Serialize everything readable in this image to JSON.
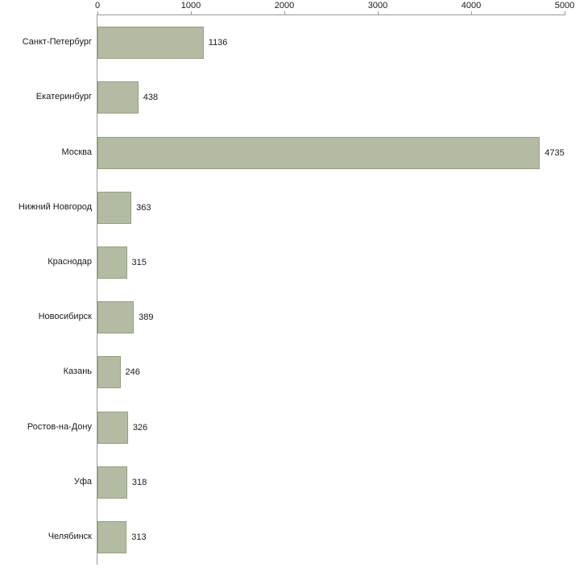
{
  "chart_data": {
    "type": "bar",
    "orientation": "horizontal",
    "title": "",
    "xlabel": "",
    "ylabel": "",
    "categories": [
      "Санкт-Петербург",
      "Екатеринбург",
      "Москва",
      "Нижний Новгород",
      "Краснодар",
      "Новосибирск",
      "Казань",
      "Ростов-на-Дону",
      "Уфа",
      "Челябинск"
    ],
    "values": [
      1136,
      438,
      4735,
      363,
      315,
      389,
      246,
      326,
      318,
      313
    ],
    "xlim": [
      0,
      5000
    ],
    "x_ticks": [
      0,
      1000,
      2000,
      3000,
      4000,
      5000
    ],
    "grid": false,
    "legend": "none",
    "bar_fill_color": "#b3bca2",
    "bar_border_color": "#95a17d",
    "axis_color": "#999999",
    "text_color": "#1a1a1a",
    "background_color": "#ffffff"
  }
}
